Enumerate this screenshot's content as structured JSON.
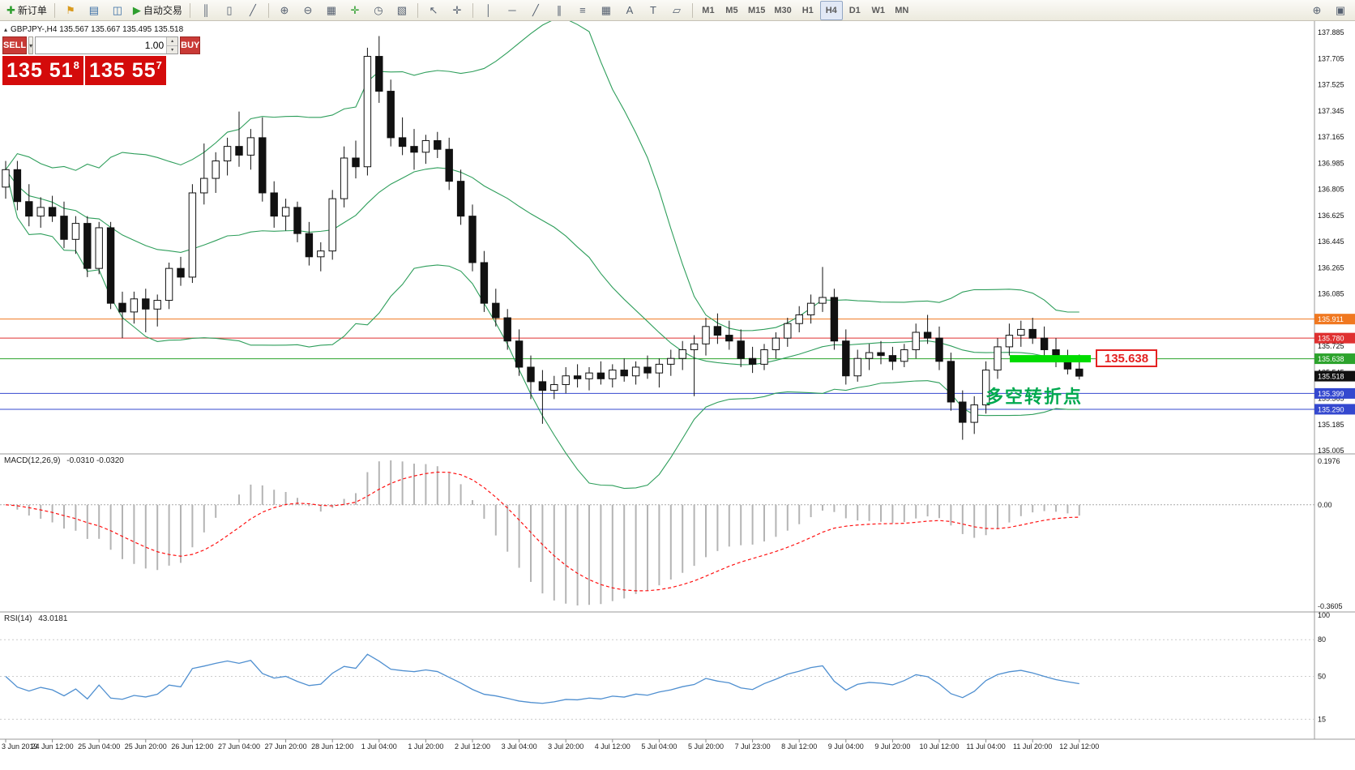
{
  "toolbar": {
    "groups": [
      {
        "items": [
          {
            "name": "new-order-button",
            "icon": "new-order-icon",
            "glyph": "✚",
            "color": "#2e9e2e",
            "label": "新订单"
          }
        ]
      },
      {
        "items": [
          {
            "name": "announcement-button",
            "icon": "announcement-icon",
            "glyph": "⚑",
            "color": "#d99a1e"
          },
          {
            "name": "market-watch-button",
            "icon": "market-watch-icon",
            "glyph": "▤",
            "color": "#3a6ea5"
          },
          {
            "name": "navigator-button",
            "icon": "navigator-icon",
            "glyph": "◫",
            "color": "#3a6ea5"
          },
          {
            "name": "autotrading-button",
            "icon": "autotrade-play-icon",
            "glyph": "▶",
            "color": "#2e9e2e",
            "label": "自动交易"
          }
        ]
      },
      {
        "items": [
          {
            "name": "bar-chart-button",
            "icon": "bar-chart-icon",
            "glyph": "║"
          },
          {
            "name": "candle-chart-button",
            "icon": "candle-chart-icon",
            "glyph": "▯"
          },
          {
            "name": "line-chart-button",
            "icon": "line-chart-icon",
            "glyph": "╱"
          }
        ]
      },
      {
        "items": [
          {
            "name": "zoom-in-button",
            "icon": "zoom-in-icon",
            "glyph": "⊕"
          },
          {
            "name": "zoom-out-button",
            "icon": "zoom-out-icon",
            "glyph": "⊖"
          },
          {
            "name": "tile-windows-button",
            "icon": "tile-windows-icon",
            "glyph": "▦"
          },
          {
            "name": "indicators-button",
            "icon": "add-indicator-icon",
            "glyph": "✛",
            "color": "#2e9e2e"
          },
          {
            "name": "periods-button",
            "icon": "clock-icon",
            "glyph": "◷"
          },
          {
            "name": "templates-button",
            "icon": "template-icon",
            "glyph": "▧"
          }
        ]
      },
      {
        "items": [
          {
            "name": "cursor-button",
            "icon": "cursor-icon",
            "glyph": "↖"
          },
          {
            "name": "crosshair-button",
            "icon": "crosshair-icon",
            "glyph": "✛"
          }
        ]
      },
      {
        "items": [
          {
            "name": "vertical-line-button",
            "icon": "vertical-line-icon",
            "glyph": "│"
          },
          {
            "name": "horizontal-line-button",
            "icon": "horizontal-line-icon",
            "glyph": "─"
          },
          {
            "name": "trendline-button",
            "icon": "trendline-icon",
            "glyph": "╱"
          },
          {
            "name": "channel-button",
            "icon": "channel-icon",
            "glyph": "∥"
          },
          {
            "name": "fibonacci-button",
            "icon": "fibonacci-icon",
            "glyph": "≡"
          },
          {
            "name": "grid-button",
            "icon": "grid-icon",
            "glyph": "▦"
          },
          {
            "name": "text-button",
            "icon": "text-icon",
            "glyph": "A"
          },
          {
            "name": "label-button",
            "icon": "label-icon",
            "glyph": "T"
          },
          {
            "name": "shapes-button",
            "icon": "shapes-icon",
            "glyph": "▱"
          }
        ]
      },
      {
        "items": [
          {
            "name": "tf-m1-button",
            "label": "M1",
            "tf": true
          },
          {
            "name": "tf-m5-button",
            "label": "M5",
            "tf": true
          },
          {
            "name": "tf-m15-button",
            "label": "M15",
            "tf": true
          },
          {
            "name": "tf-m30-button",
            "label": "M30",
            "tf": true
          },
          {
            "name": "tf-h1-button",
            "label": "H1",
            "tf": true
          },
          {
            "name": "tf-h4-button",
            "label": "H4",
            "tf": true,
            "active": true
          },
          {
            "name": "tf-d1-button",
            "label": "D1",
            "tf": true
          },
          {
            "name": "tf-w1-button",
            "label": "W1",
            "tf": true
          },
          {
            "name": "tf-mn-button",
            "label": "MN",
            "tf": true
          }
        ]
      }
    ],
    "right_items": [
      {
        "name": "search-symbol-button",
        "icon": "search-icon",
        "glyph": "⊕"
      },
      {
        "name": "layouts-button",
        "icon": "layouts-icon",
        "glyph": "▣"
      }
    ]
  },
  "symbol_header": {
    "text": "GBPJPY-,H4  135.567 135.667 135.495 135.518"
  },
  "icons": {
    "caret_down": "▾",
    "spinner_up": "▴",
    "spinner_down": "▾",
    "symbol_marker": "▴"
  },
  "one_click": {
    "sell_label": "SELL",
    "buy_label": "BUY",
    "volume": "1.00",
    "sell_big": "135 51",
    "sell_sup": "8",
    "buy_big": "135 55",
    "buy_sup": "7"
  },
  "annotations": {
    "price_label": "135.638",
    "note": "多空转折点",
    "highlight": {
      "price": 135.638,
      "color": "#00dc00"
    }
  },
  "chart_data": [
    {
      "type": "candlestick",
      "title": "GBPJPY-,H4",
      "ohlc": [
        "135.567",
        "135.667",
        "135.495",
        "135.518"
      ],
      "x_label_step": 4,
      "x_labels": [
        "3 Jun 2019",
        "24 Jun 12:00",
        "25 Jun 04:00",
        "25 Jun 20:00",
        "26 Jun 12:00",
        "27 Jun 04:00",
        "27 Jun 20:00",
        "28 Jun 12:00",
        "1 Jul 04:00",
        "1 Jul 20:00",
        "2 Jul 12:00",
        "3 Jul 04:00",
        "3 Jul 20:00",
        "4 Jul 12:00",
        "5 Jul 04:00",
        "5 Jul 20:00",
        "7 Jul 23:00",
        "8 Jul 12:00",
        "9 Jul 04:00",
        "9 Jul 20:00",
        "10 Jul 12:00",
        "11 Jul 04:00",
        "11 Jul 20:00",
        "12 Jul 12:00"
      ],
      "y_axis_labels": [
        "137.885",
        "137.705",
        "137.525",
        "137.345",
        "137.165",
        "136.985",
        "136.805",
        "136.625",
        "136.445",
        "136.265",
        "136.085",
        "135.905",
        "135.725",
        "135.545",
        "135.365",
        "135.185",
        "135.005"
      ],
      "price_tags": [
        {
          "label": "135.911",
          "color": "#f07820"
        },
        {
          "label": "135.780",
          "color": "#df3030"
        },
        {
          "label": "135.638",
          "color": "#2ca32c"
        },
        {
          "label": "135.518",
          "color": "#101010"
        },
        {
          "label": "135.399",
          "color": "#3448cf"
        },
        {
          "label": "135.290",
          "color": "#3448cf"
        }
      ],
      "h_lines": [
        {
          "price": 135.911,
          "color": "#f07820"
        },
        {
          "price": 135.78,
          "color": "#df3030"
        },
        {
          "price": 135.638,
          "color": "#2ca32c"
        },
        {
          "price": 135.399,
          "color": "#3448cf"
        },
        {
          "price": 135.29,
          "color": "#3448cf"
        }
      ],
      "bollinger": {
        "period": 20,
        "deviation": 2,
        "color": "#2e9e5b"
      },
      "candles": [
        [
          136.82,
          137.0,
          136.74,
          136.94
        ],
        [
          136.94,
          137.0,
          136.66,
          136.72
        ],
        [
          136.72,
          136.84,
          136.55,
          136.62
        ],
        [
          136.62,
          136.75,
          136.54,
          136.68
        ],
        [
          136.68,
          136.76,
          136.58,
          136.62
        ],
        [
          136.62,
          136.72,
          136.4,
          136.46
        ],
        [
          136.46,
          136.62,
          136.36,
          136.57
        ],
        [
          136.57,
          136.62,
          136.2,
          136.26
        ],
        [
          136.26,
          136.58,
          136.22,
          136.54
        ],
        [
          136.54,
          136.58,
          135.98,
          136.02
        ],
        [
          136.02,
          136.1,
          135.78,
          135.96
        ],
        [
          135.96,
          136.1,
          135.88,
          136.05
        ],
        [
          136.05,
          136.12,
          135.82,
          135.98
        ],
        [
          135.98,
          136.08,
          135.86,
          136.04
        ],
        [
          136.04,
          136.3,
          135.98,
          136.26
        ],
        [
          136.26,
          136.34,
          136.14,
          136.2
        ],
        [
          136.2,
          136.84,
          136.16,
          136.78
        ],
        [
          136.78,
          137.12,
          136.7,
          136.88
        ],
        [
          136.88,
          137.06,
          136.78,
          137.0
        ],
        [
          137.0,
          137.16,
          136.9,
          137.1
        ],
        [
          137.1,
          137.34,
          136.96,
          137.04
        ],
        [
          137.04,
          137.22,
          136.94,
          137.16
        ],
        [
          137.16,
          137.3,
          136.72,
          136.78
        ],
        [
          136.78,
          136.86,
          136.54,
          136.62
        ],
        [
          136.62,
          136.74,
          136.52,
          136.68
        ],
        [
          136.68,
          136.72,
          136.44,
          136.5
        ],
        [
          136.5,
          136.58,
          136.28,
          136.34
        ],
        [
          136.34,
          136.44,
          136.24,
          136.38
        ],
        [
          136.38,
          136.8,
          136.32,
          136.74
        ],
        [
          136.74,
          137.1,
          136.68,
          137.02
        ],
        [
          137.02,
          137.14,
          136.88,
          136.96
        ],
        [
          136.96,
          137.78,
          136.9,
          137.72
        ],
        [
          137.72,
          137.86,
          137.4,
          137.48
        ],
        [
          137.48,
          137.56,
          137.1,
          137.16
        ],
        [
          137.16,
          137.3,
          137.04,
          137.1
        ],
        [
          137.1,
          137.22,
          136.94,
          137.06
        ],
        [
          137.06,
          137.18,
          136.98,
          137.14
        ],
        [
          137.14,
          137.2,
          137.02,
          137.08
        ],
        [
          137.08,
          137.16,
          136.8,
          136.86
        ],
        [
          136.86,
          136.94,
          136.56,
          136.62
        ],
        [
          136.62,
          136.7,
          136.24,
          136.3
        ],
        [
          136.3,
          136.38,
          135.96,
          136.02
        ],
        [
          136.02,
          136.12,
          135.86,
          135.92
        ],
        [
          135.92,
          135.98,
          135.7,
          135.76
        ],
        [
          135.76,
          135.84,
          135.52,
          135.58
        ],
        [
          135.58,
          135.66,
          135.36,
          135.48
        ],
        [
          135.48,
          135.56,
          135.19,
          135.42
        ],
        [
          135.42,
          135.52,
          135.36,
          135.46
        ],
        [
          135.46,
          135.58,
          135.4,
          135.52
        ],
        [
          135.52,
          135.6,
          135.44,
          135.5
        ],
        [
          135.5,
          135.58,
          135.42,
          135.54
        ],
        [
          135.54,
          135.62,
          135.46,
          135.5
        ],
        [
          135.5,
          135.6,
          135.44,
          135.56
        ],
        [
          135.56,
          135.64,
          135.48,
          135.52
        ],
        [
          135.52,
          135.62,
          135.46,
          135.58
        ],
        [
          135.58,
          135.66,
          135.5,
          135.54
        ],
        [
          135.54,
          135.64,
          135.44,
          135.6
        ],
        [
          135.6,
          135.7,
          135.52,
          135.64
        ],
        [
          135.64,
          135.76,
          135.56,
          135.7
        ],
        [
          135.7,
          135.8,
          135.38,
          135.74
        ],
        [
          135.74,
          135.92,
          135.66,
          135.86
        ],
        [
          135.86,
          135.95,
          135.74,
          135.8
        ],
        [
          135.8,
          135.9,
          135.7,
          135.76
        ],
        [
          135.76,
          135.84,
          135.58,
          135.64
        ],
        [
          135.64,
          135.72,
          135.54,
          135.6
        ],
        [
          135.6,
          135.74,
          135.56,
          135.7
        ],
        [
          135.7,
          135.82,
          135.64,
          135.78
        ],
        [
          135.78,
          135.92,
          135.72,
          135.88
        ],
        [
          135.88,
          136.0,
          135.82,
          135.94
        ],
        [
          135.94,
          136.08,
          135.88,
          136.02
        ],
        [
          136.02,
          136.27,
          135.96,
          136.06
        ],
        [
          136.06,
          136.12,
          135.7,
          135.76
        ],
        [
          135.76,
          135.84,
          135.46,
          135.52
        ],
        [
          135.52,
          135.7,
          135.48,
          135.64
        ],
        [
          135.64,
          135.74,
          135.56,
          135.68
        ],
        [
          135.68,
          135.76,
          135.6,
          135.66
        ],
        [
          135.66,
          135.72,
          135.56,
          135.62
        ],
        [
          135.62,
          135.74,
          135.58,
          135.7
        ],
        [
          135.7,
          135.88,
          135.64,
          135.82
        ],
        [
          135.82,
          135.94,
          135.74,
          135.78
        ],
        [
          135.78,
          135.86,
          135.56,
          135.62
        ],
        [
          135.62,
          135.68,
          135.28,
          135.34
        ],
        [
          135.34,
          135.42,
          135.08,
          135.2
        ],
        [
          135.2,
          135.38,
          135.12,
          135.32
        ],
        [
          135.32,
          135.62,
          135.26,
          135.56
        ],
        [
          135.56,
          135.78,
          135.5,
          135.72
        ],
        [
          135.72,
          135.88,
          135.66,
          135.8
        ],
        [
          135.8,
          135.9,
          135.72,
          135.84
        ],
        [
          135.84,
          135.92,
          135.74,
          135.78
        ],
        [
          135.78,
          135.86,
          135.66,
          135.7
        ],
        [
          135.7,
          135.78,
          135.58,
          135.62
        ],
        [
          135.62,
          135.7,
          135.53,
          135.567
        ],
        [
          135.567,
          135.667,
          135.495,
          135.518
        ]
      ]
    },
    {
      "type": "macd",
      "title": "MACD(12,26,9)",
      "current_values": "-0.0310 -0.0320",
      "axis_labels": [
        "0.1976",
        "0.00",
        "-0.3605"
      ],
      "params": {
        "fast": 12,
        "slow": 26,
        "signal": 9
      },
      "histogram_color": "#b4b4b4",
      "signal_color": "#ff1010"
    },
    {
      "type": "rsi-line",
      "title": "RSI(14)",
      "current_value": "43.0181",
      "period": 14,
      "levels": [
        "100",
        "80",
        "50",
        "15"
      ],
      "line_color": "#4f8fd0"
    }
  ]
}
